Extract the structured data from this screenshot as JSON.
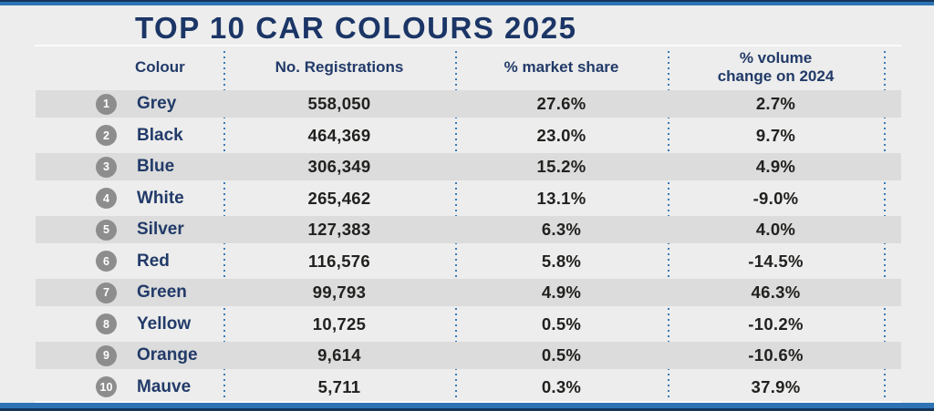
{
  "page": {
    "title": "TOP 10 CAR COLOURS 2025"
  },
  "table": {
    "headers": {
      "colour": "Colour",
      "registrations": "No. Registrations",
      "market_share": "% market share",
      "volume_change_line1": "% volume",
      "volume_change_line2": "change on 2024"
    },
    "rows": [
      {
        "rank": "1",
        "colour": "Grey",
        "registrations": "558,050",
        "market_share": "27.6%",
        "volume_change": "2.7%"
      },
      {
        "rank": "2",
        "colour": "Black",
        "registrations": "464,369",
        "market_share": "23.0%",
        "volume_change": "9.7%"
      },
      {
        "rank": "3",
        "colour": "Blue",
        "registrations": "306,349",
        "market_share": "15.2%",
        "volume_change": "4.9%"
      },
      {
        "rank": "4",
        "colour": "White",
        "registrations": "265,462",
        "market_share": "13.1%",
        "volume_change": "-9.0%"
      },
      {
        "rank": "5",
        "colour": "Silver",
        "registrations": "127,383",
        "market_share": "6.3%",
        "volume_change": "4.0%"
      },
      {
        "rank": "6",
        "colour": "Red",
        "registrations": "116,576",
        "market_share": "5.8%",
        "volume_change": "-14.5%"
      },
      {
        "rank": "7",
        "colour": "Green",
        "registrations": "99,793",
        "market_share": "4.9%",
        "volume_change": "46.3%"
      },
      {
        "rank": "8",
        "colour": "Yellow",
        "registrations": "10,725",
        "market_share": "0.5%",
        "volume_change": "-10.2%"
      },
      {
        "rank": "9",
        "colour": "Orange",
        "registrations": "9,614",
        "market_share": "0.5%",
        "volume_change": "-10.6%"
      },
      {
        "rank": "10",
        "colour": "Mauve",
        "registrations": "5,711",
        "market_share": "0.3%",
        "volume_change": "37.9%"
      }
    ]
  },
  "colors": {
    "accent_blue": "#2e74b5",
    "navy_dark_edge": "#16355c",
    "navy_text": "#223a69",
    "title_navy": "#1b3566",
    "background": "#ecedec",
    "stripe": "#dbdcdb",
    "badge_grey": "#8d8d8d",
    "dotted_separator": "#3b7ab8",
    "number_text": "#21211f"
  },
  "chart_data": {
    "type": "table",
    "title": "TOP 10 CAR COLOURS 2025",
    "columns": [
      "Colour",
      "No. Registrations",
      "% market share",
      "% volume change on 2024"
    ],
    "rows": [
      [
        "Grey",
        558050,
        27.6,
        2.7
      ],
      [
        "Black",
        464369,
        23.0,
        9.7
      ],
      [
        "Blue",
        306349,
        15.2,
        4.9
      ],
      [
        "White",
        265462,
        13.1,
        -9.0
      ],
      [
        "Silver",
        127383,
        6.3,
        4.0
      ],
      [
        "Red",
        116576,
        5.8,
        -14.5
      ],
      [
        "Green",
        99793,
        4.9,
        46.3
      ],
      [
        "Yellow",
        10725,
        0.5,
        -10.2
      ],
      [
        "Orange",
        9614,
        0.5,
        -10.6
      ],
      [
        "Mauve",
        5711,
        0.3,
        37.9
      ]
    ]
  }
}
